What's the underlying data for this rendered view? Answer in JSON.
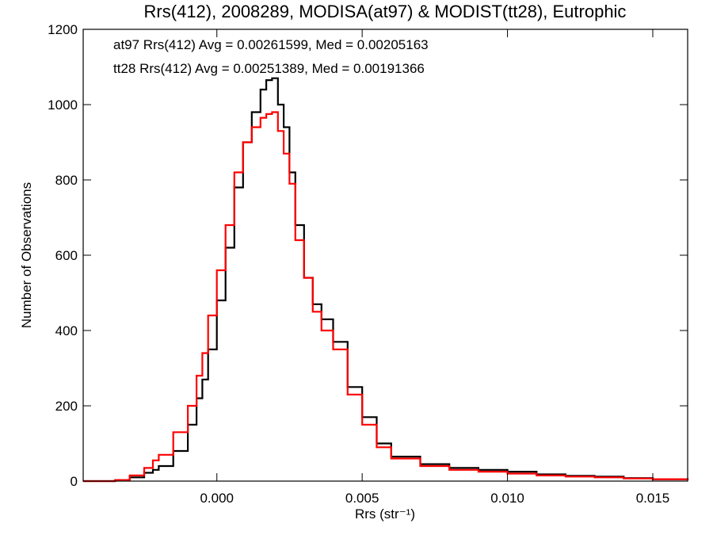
{
  "chart_data": {
    "type": "line",
    "title": "Rrs(412), 2008289, MODISA(at97) & MODIST(tt28), Eutrophic",
    "xlabel": "Rrs (str⁻¹)",
    "ylabel": "Number of Observations",
    "xlim": [
      -0.0046,
      0.0162
    ],
    "ylim": [
      0,
      1200
    ],
    "xticks": [
      0.0,
      0.005,
      0.01,
      0.015
    ],
    "xtick_labels": [
      "0.000",
      "0.005",
      "0.010",
      "0.015"
    ],
    "yticks": [
      0,
      200,
      400,
      600,
      800,
      1000,
      1200
    ],
    "ytick_labels": [
      "0",
      "200",
      "400",
      "600",
      "800",
      "1000",
      "1200"
    ],
    "grid": false,
    "annotations": [
      {
        "text": "at97 Rrs(412) Avg = 0.00261599, Med = 0.00205163",
        "color": "#000000"
      },
      {
        "text": "tt28 Rrs(412) Avg = 0.00251389, Med = 0.00191366",
        "color": "#ff0000"
      }
    ],
    "series": [
      {
        "color": "#000000",
        "style": "histogram-step",
        "x": [
          -0.0046,
          -0.004,
          -0.0035,
          -0.003,
          -0.0025,
          -0.0022,
          -0.002,
          -0.0015,
          -0.001,
          -0.0007,
          -0.0005,
          -0.0003,
          0.0,
          0.0003,
          0.0006,
          0.0009,
          0.0012,
          0.0015,
          0.0017,
          0.0019,
          0.0021,
          0.0023,
          0.0025,
          0.0027,
          0.003,
          0.0033,
          0.0036,
          0.004,
          0.0045,
          0.005,
          0.0055,
          0.006,
          0.007,
          0.008,
          0.009,
          0.01,
          0.011,
          0.012,
          0.013,
          0.014,
          0.015,
          0.0162
        ],
        "y": [
          0,
          0,
          2,
          10,
          22,
          30,
          40,
          80,
          150,
          220,
          270,
          350,
          480,
          620,
          780,
          900,
          980,
          1040,
          1065,
          1070,
          1000,
          940,
          820,
          680,
          540,
          470,
          430,
          370,
          250,
          170,
          100,
          65,
          45,
          35,
          30,
          25,
          18,
          14,
          12,
          8,
          5,
          3
        ]
      },
      {
        "color": "#ff0000",
        "style": "histogram-step",
        "x": [
          -0.0046,
          -0.004,
          -0.0035,
          -0.003,
          -0.0025,
          -0.0022,
          -0.002,
          -0.0015,
          -0.001,
          -0.0007,
          -0.0005,
          -0.0003,
          0.0,
          0.0003,
          0.0006,
          0.0009,
          0.0012,
          0.0015,
          0.0017,
          0.0019,
          0.0021,
          0.0023,
          0.0025,
          0.0027,
          0.003,
          0.0033,
          0.0036,
          0.004,
          0.0045,
          0.005,
          0.0055,
          0.006,
          0.007,
          0.008,
          0.009,
          0.01,
          0.011,
          0.012,
          0.013,
          0.014,
          0.015,
          0.0162
        ],
        "y": [
          0,
          0,
          3,
          15,
          35,
          55,
          70,
          130,
          200,
          280,
          340,
          440,
          560,
          680,
          820,
          900,
          940,
          965,
          975,
          980,
          930,
          870,
          790,
          640,
          540,
          450,
          400,
          350,
          230,
          150,
          90,
          60,
          40,
          30,
          25,
          20,
          15,
          12,
          10,
          7,
          5,
          3
        ]
      }
    ]
  }
}
